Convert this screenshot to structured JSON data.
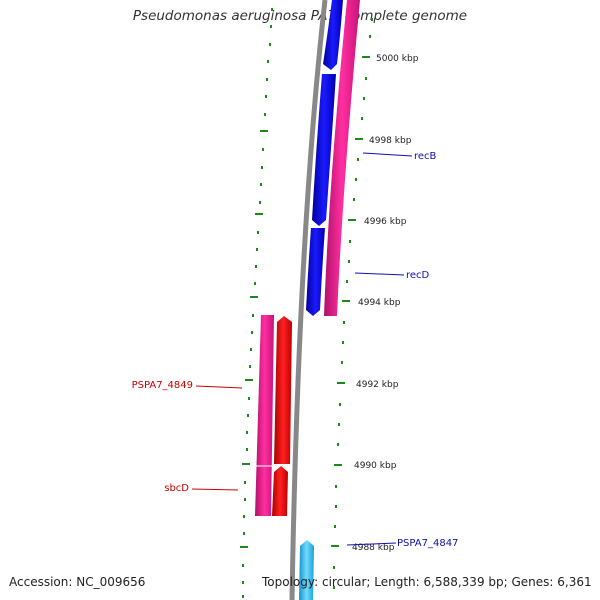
{
  "title": "Pseudomonas aeruginosa PA7, complete genome",
  "footer": {
    "accession": "Accession: NC_009656",
    "summary": "Topology: circular; Length: 6,588,339 bp; Genes: 6,361"
  },
  "scale": {
    "unit": "kbp",
    "ticks": [
      "5000 kbp",
      "4998 kbp",
      "4996 kbp",
      "4994 kbp",
      "4992 kbp",
      "4990 kbp",
      "4988 kbp"
    ]
  },
  "genes": [
    {
      "name": "recB",
      "strand": "reverse",
      "color": "#0000ee",
      "label_color": "#1010b0"
    },
    {
      "name": "recD",
      "strand": "reverse",
      "color": "#0000ee",
      "label_color": "#1010b0"
    },
    {
      "name": "PSPA7_4849",
      "strand": "forward",
      "color": "#ee0000",
      "label_color": "#cc0000"
    },
    {
      "name": "sbcD",
      "strand": "forward",
      "color": "#ee0000",
      "label_color": "#cc0000"
    },
    {
      "name": "PSPA7_4847",
      "strand": "reverse",
      "color": "#33bbee",
      "label_color": "#1010b0"
    }
  ],
  "colors": {
    "backbone": "#888888",
    "cds": "#e8168c",
    "tick": "#1a8a1a",
    "forward_gene": "#ee0000",
    "reverse_gene": "#0000ee",
    "light_gene": "#33bbee"
  }
}
